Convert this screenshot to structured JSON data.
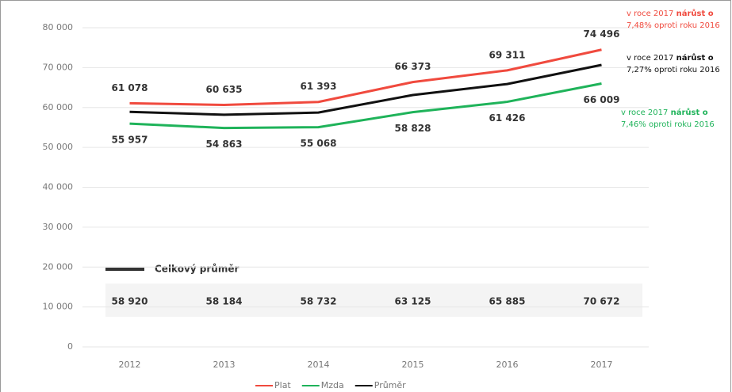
{
  "chart_data": {
    "type": "line",
    "categories": [
      "2012",
      "2013",
      "2014",
      "2015",
      "2016",
      "2017"
    ],
    "series": [
      {
        "name": "Plat",
        "color": "#f04a3e",
        "label_position": "above",
        "values": [
          61078,
          60635,
          61393,
          66373,
          69311,
          74496
        ],
        "value_labels": [
          "61 078",
          "60 635",
          "61 393",
          "66 373",
          "69 311",
          "74 496"
        ]
      },
      {
        "name": "Mzda",
        "color": "#1fb35a",
        "label_position": "below",
        "values": [
          55957,
          54863,
          55068,
          58828,
          61426,
          66009
        ],
        "value_labels": [
          "55 957",
          "54 863",
          "55 068",
          "58 828",
          "61 426",
          "66 009"
        ]
      },
      {
        "name": "Průměr",
        "color": "#111111",
        "label_position": "band",
        "values": [
          58920,
          58184,
          58732,
          63125,
          65885,
          70672
        ],
        "value_labels": [
          "58 920",
          "58 184",
          "58 732",
          "63 125",
          "65 885",
          "70 672"
        ]
      }
    ],
    "average_label": "Celkový průměr",
    "annotations": [
      {
        "color": "#f04a3e",
        "text": "v roce 2017 ",
        "bold": "nárůst o",
        "line2": "7,48% oproti roku 2016"
      },
      {
        "color": "#111111",
        "text": "v roce 2017 ",
        "bold": "nárůst o",
        "line2": "7,27% oproti roku 2016"
      },
      {
        "color": "#1fb35a",
        "text": "v roce 2017 ",
        "bold": "nárůst o",
        "line2": "7,46% oproti roku 2016"
      }
    ],
    "ylim": [
      0,
      80000
    ],
    "yticks": [
      0,
      {
        "value": 10000,
        "label": "10 000"
      },
      {
        "value": 20000,
        "label": "20 000"
      },
      {
        "value": 30000,
        "label": "30 000"
      },
      {
        "value": 40000,
        "label": "40 000"
      },
      {
        "value": 50000,
        "label": "50 000"
      },
      {
        "value": 60000,
        "label": "60 000"
      },
      {
        "value": 70000,
        "label": "70 000"
      },
      {
        "value": 80000,
        "label": "80 000"
      }
    ],
    "grid": true
  }
}
